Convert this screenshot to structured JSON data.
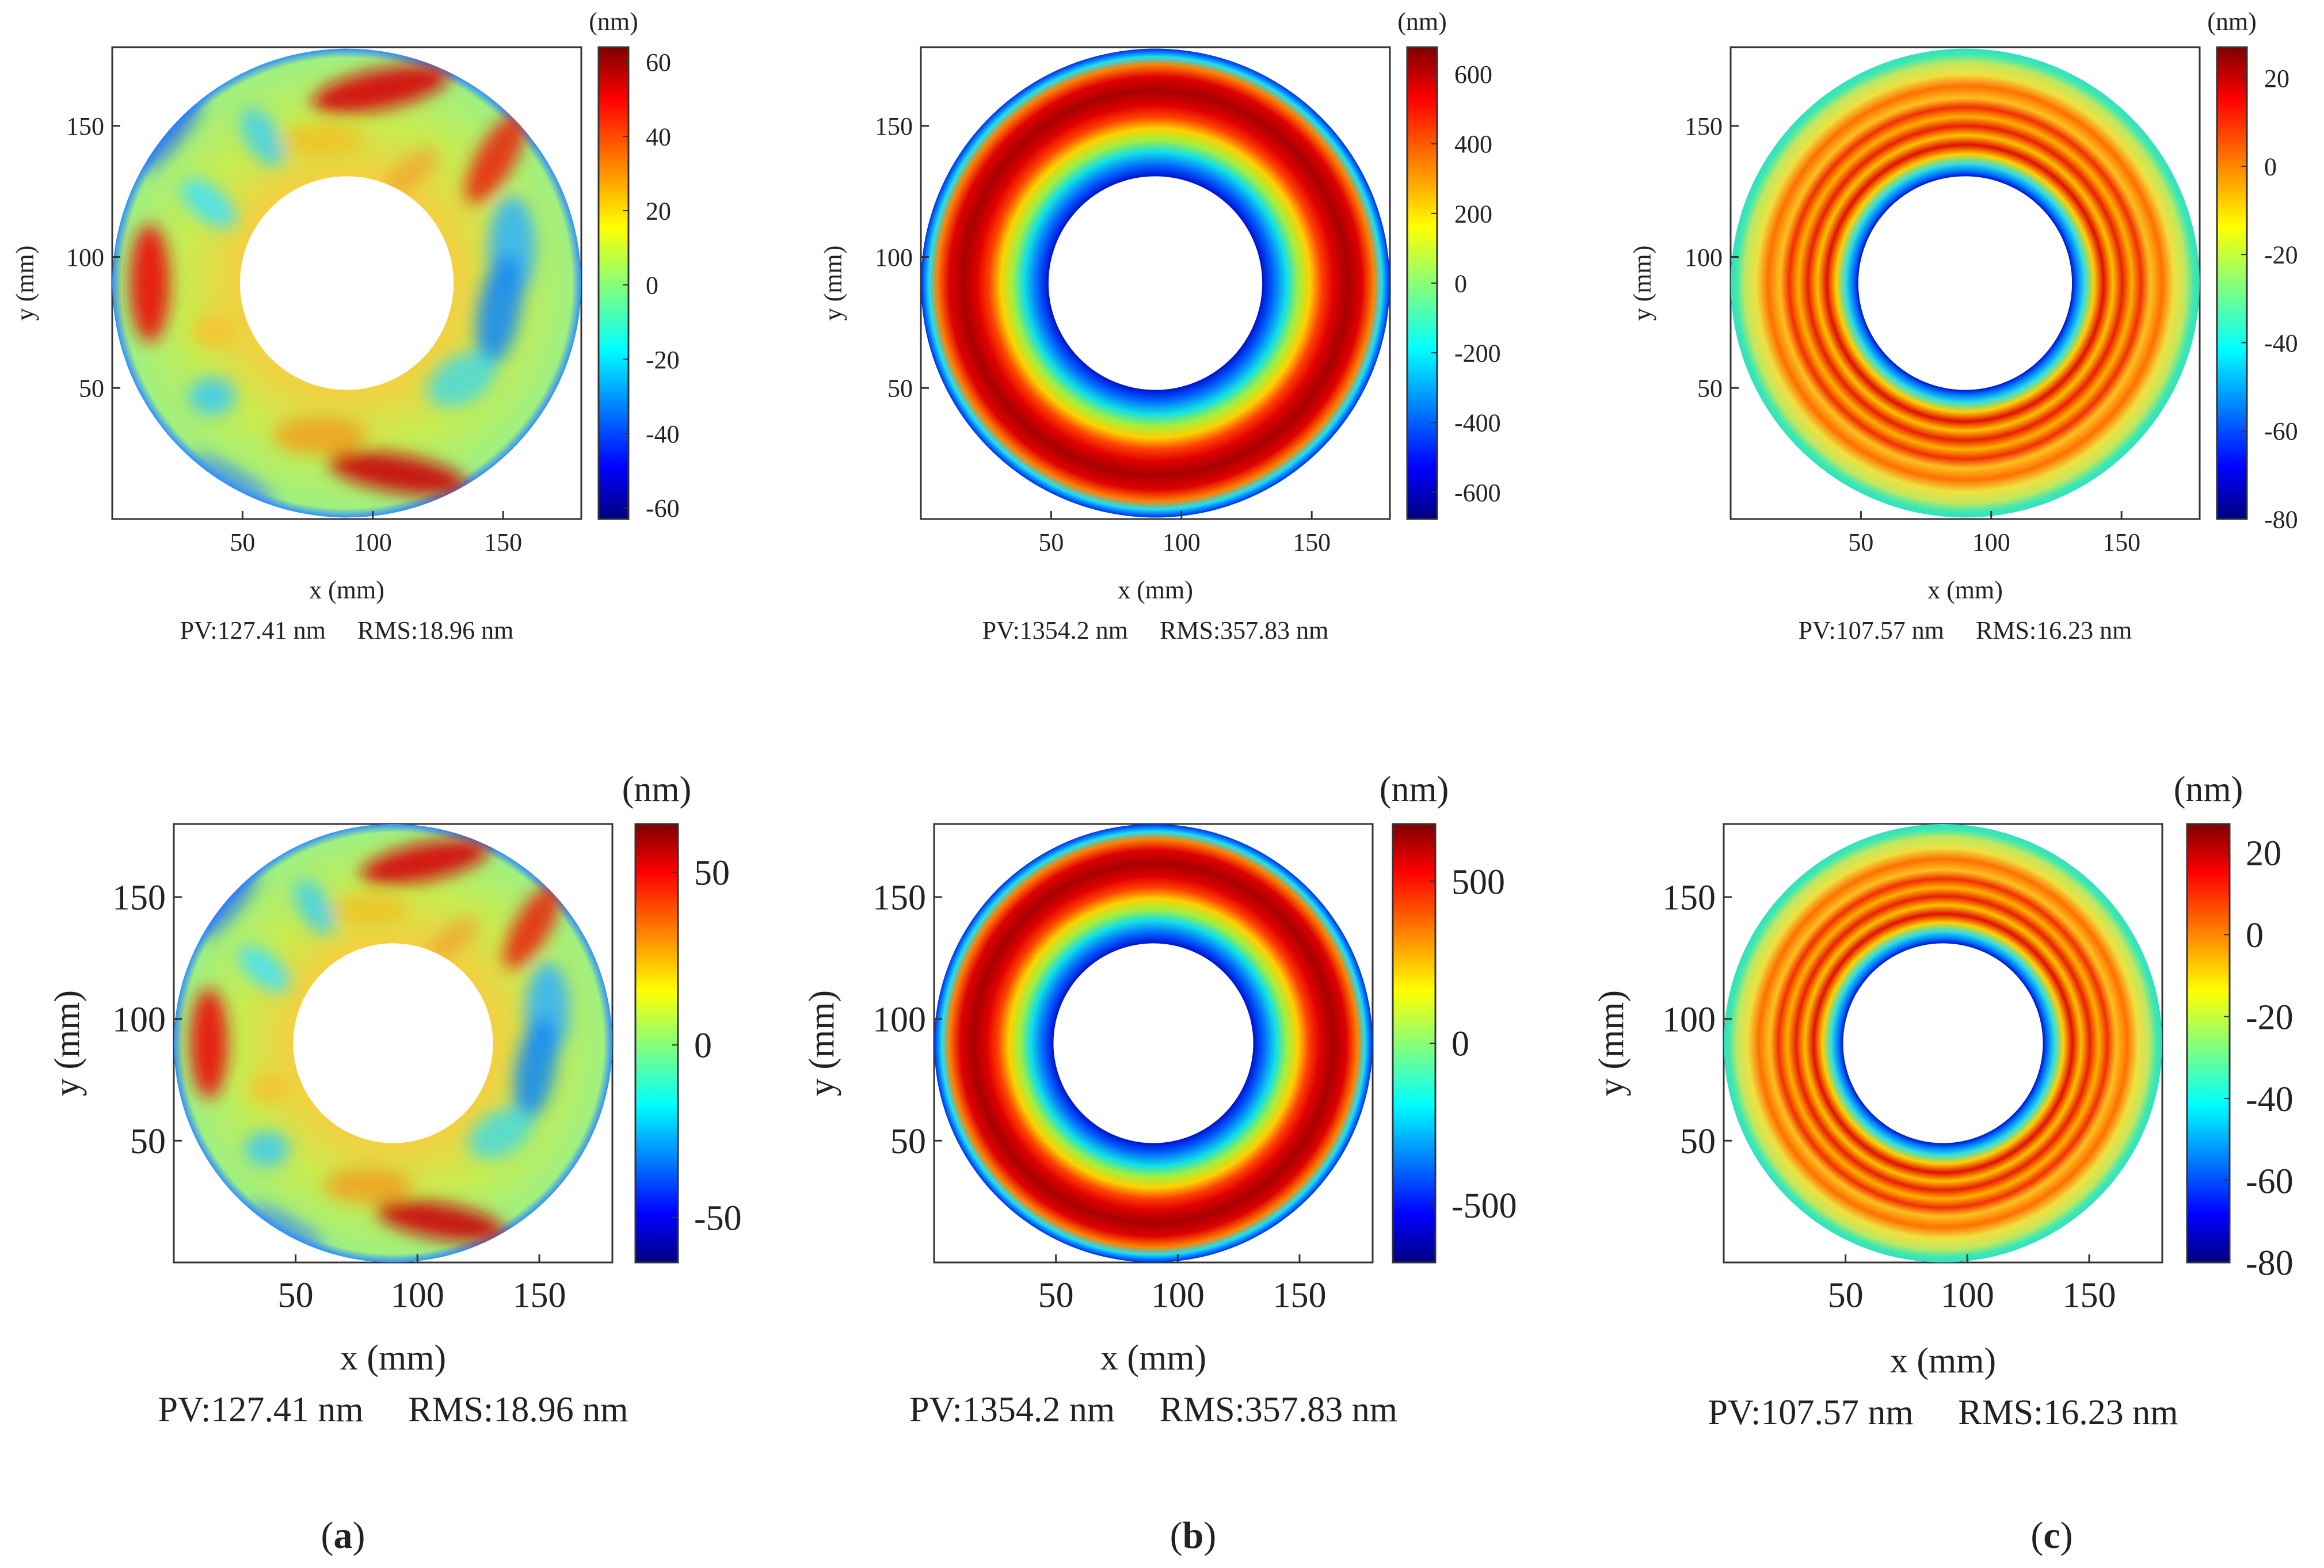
{
  "figure": {
    "labels": [
      "(a)",
      "(b)",
      "(c)"
    ]
  },
  "chart_data": [
    {
      "type": "heatmap",
      "panel": "a-top",
      "title": "",
      "xlabel": "x (mm)",
      "ylabel": "y (mm)",
      "xlim": [
        0,
        180
      ],
      "ylim": [
        0,
        180
      ],
      "xticks": [
        50,
        100,
        150
      ],
      "yticks": [
        50,
        100,
        150
      ],
      "colorbar": {
        "unit": "(nm)",
        "range": [
          -63,
          64
        ],
        "ticks": [
          60,
          40,
          20,
          0,
          -20,
          -40,
          -60
        ]
      },
      "aperture": {
        "center": [
          90,
          90
        ],
        "outer_radius_mm": 90,
        "inner_radius_mm": 41
      },
      "stats": "PV:127.41 nm     RMS:18.96 nm",
      "pattern": "spiral"
    },
    {
      "type": "heatmap",
      "panel": "b-top",
      "title": "",
      "xlabel": "x (mm)",
      "ylabel": "y (mm)",
      "xlim": [
        0,
        180
      ],
      "ylim": [
        0,
        180
      ],
      "xticks": [
        50,
        100,
        150
      ],
      "yticks": [
        50,
        100,
        150
      ],
      "colorbar": {
        "unit": "(nm)",
        "range": [
          -677,
          677
        ],
        "ticks": [
          600,
          400,
          200,
          0,
          -200,
          -400,
          -600
        ]
      },
      "aperture": {
        "center": [
          90,
          90
        ],
        "outer_radius_mm": 90,
        "inner_radius_mm": 41
      },
      "stats": "PV:1354.2 nm     RMS:357.83 nm",
      "pattern": "ring"
    },
    {
      "type": "heatmap",
      "panel": "c-top",
      "title": "",
      "xlabel": "x (mm)",
      "ylabel": "y (mm)",
      "xlim": [
        0,
        180
      ],
      "ylim": [
        0,
        180
      ],
      "xticks": [
        50,
        100,
        150
      ],
      "yticks": [
        50,
        100,
        150
      ],
      "colorbar": {
        "unit": "(nm)",
        "range": [
          -80,
          27
        ],
        "ticks": [
          20,
          0,
          -20,
          -40,
          -60,
          -80
        ]
      },
      "aperture": {
        "center": [
          90,
          90
        ],
        "outer_radius_mm": 90,
        "inner_radius_mm": 41
      },
      "stats": "PV:107.57 nm     RMS:16.23 nm",
      "pattern": "multi-ring"
    },
    {
      "type": "heatmap",
      "panel": "a-bottom",
      "title": "",
      "xlabel": "x (mm)",
      "ylabel": "y (mm)",
      "xlim": [
        0,
        180
      ],
      "ylim": [
        0,
        180
      ],
      "xticks": [
        50,
        100,
        150
      ],
      "yticks": [
        50,
        100,
        150
      ],
      "colorbar": {
        "unit": "(nm)",
        "range": [
          -63,
          64
        ],
        "ticks": [
          50,
          0,
          -50
        ]
      },
      "aperture": {
        "center": [
          90,
          90
        ],
        "outer_radius_mm": 90,
        "inner_radius_mm": 41
      },
      "stats": "PV:127.41 nm     RMS:18.96 nm",
      "pattern": "spiral"
    },
    {
      "type": "heatmap",
      "panel": "b-bottom",
      "title": "",
      "xlabel": "x (mm)",
      "ylabel": "y (mm)",
      "xlim": [
        0,
        180
      ],
      "ylim": [
        0,
        180
      ],
      "xticks": [
        50,
        100,
        150
      ],
      "yticks": [
        50,
        100,
        150
      ],
      "colorbar": {
        "unit": "(nm)",
        "range": [
          -677,
          677
        ],
        "ticks": [
          500,
          0,
          -500
        ]
      },
      "aperture": {
        "center": [
          90,
          90
        ],
        "outer_radius_mm": 90,
        "inner_radius_mm": 41
      },
      "stats": "PV:1354.2 nm     RMS:357.83 nm",
      "pattern": "ring"
    },
    {
      "type": "heatmap",
      "panel": "c-bottom",
      "title": "",
      "xlabel": "x (mm)",
      "ylabel": "y (mm)",
      "xlim": [
        0,
        180
      ],
      "ylim": [
        0,
        180
      ],
      "xticks": [
        50,
        100,
        150
      ],
      "yticks": [
        50,
        100,
        150
      ],
      "colorbar": {
        "unit": "(nm)",
        "range": [
          -80,
          27
        ],
        "ticks": [
          20,
          0,
          -20,
          -40,
          -60,
          -80
        ]
      },
      "aperture": {
        "center": [
          90,
          90
        ],
        "outer_radius_mm": 90,
        "inner_radius_mm": 41
      },
      "stats": "PV:107.57 nm     RMS:16.23 nm",
      "pattern": "multi-ring"
    }
  ]
}
